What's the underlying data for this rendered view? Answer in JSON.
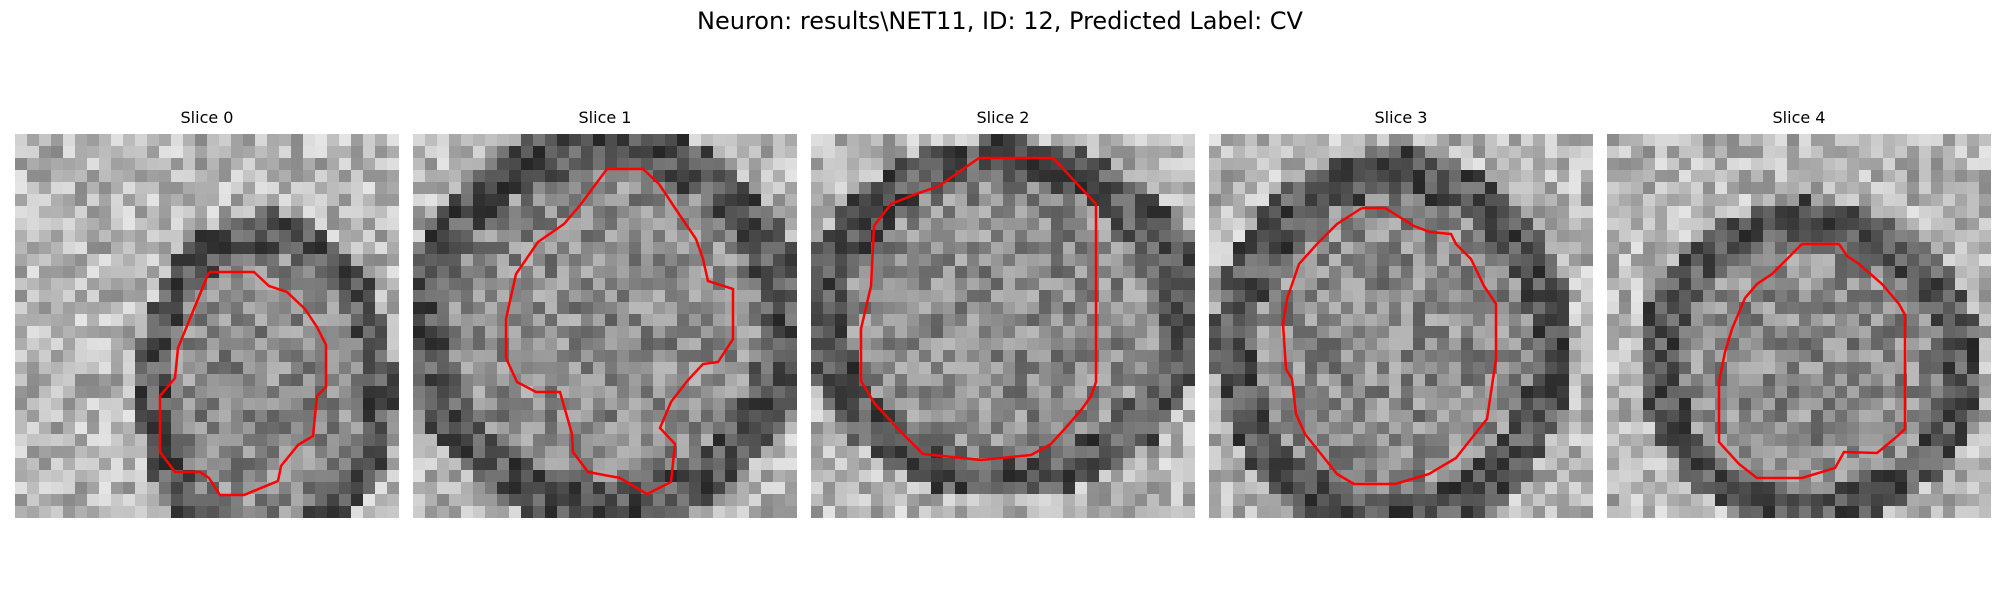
{
  "figure": {
    "title": "Neuron: results\\NET11, ID: 12, Predicted Label: CV"
  },
  "panels": [
    {
      "title": "Slice 0"
    },
    {
      "title": "Slice 1"
    },
    {
      "title": "Slice 2"
    },
    {
      "title": "Slice 3"
    },
    {
      "title": "Slice 4"
    }
  ],
  "colors": {
    "contour": "#ff0000",
    "background": "#ffffff",
    "colormap": "grayscale"
  }
}
